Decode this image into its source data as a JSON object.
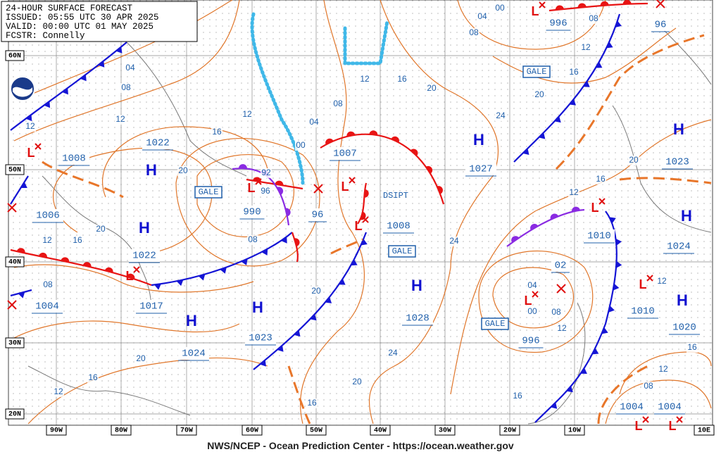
{
  "header": {
    "lines": [
      "24-HOUR SURFACE FORECAST",
      "ISSUED: 05:55 UTC 30 APR 2025",
      "VALID:  00:00 UTC 01 MAY 2025",
      "FCSTR:  Connelly"
    ]
  },
  "lat_labels": [
    "60N",
    "50N",
    "40N",
    "30N",
    "20N"
  ],
  "lon_labels": [
    "90W",
    "80W",
    "70W",
    "60W",
    "50W",
    "40W",
    "30W",
    "20W",
    "10W",
    "10E"
  ],
  "highs": [
    "H",
    "H",
    "H",
    "H",
    "H",
    "H",
    "H",
    "H",
    "H"
  ],
  "lows": [
    "L",
    "L",
    "L",
    "L",
    "L",
    "L",
    "L",
    "L",
    "L",
    "L",
    "L"
  ],
  "pressure_labels": [
    "1008",
    "1006",
    "1022",
    "1022",
    "1017",
    "1024",
    "1023",
    "990",
    "96",
    "1007",
    "1008",
    "1027",
    "1028",
    "996",
    "02",
    "1010",
    "1010",
    "1004",
    "1004",
    "1004",
    "1020",
    "1024",
    "1023",
    "996",
    "96"
  ],
  "isobar_labels": [
    "04",
    "08",
    "12",
    "12",
    "16",
    "20",
    "12",
    "08",
    "04",
    "00",
    "12",
    "16",
    "20",
    "24",
    "20",
    "16",
    "12",
    "08",
    "04",
    "08",
    "00",
    "20",
    "16",
    "12",
    "08",
    "08",
    "20",
    "24",
    "24",
    "20",
    "16",
    "16",
    "12",
    "20",
    "12",
    "16",
    "20",
    "04",
    "08",
    "12",
    "00",
    "16",
    "12",
    "16",
    "12",
    "08",
    "92",
    "96"
  ],
  "gale_labels": [
    "GALE",
    "GALE",
    "GALE",
    "GALE"
  ],
  "dissipating_label": "DSIPT",
  "footer": "NWS/NCEP - Ocean Prediction Center - https://ocean.weather.gov"
}
